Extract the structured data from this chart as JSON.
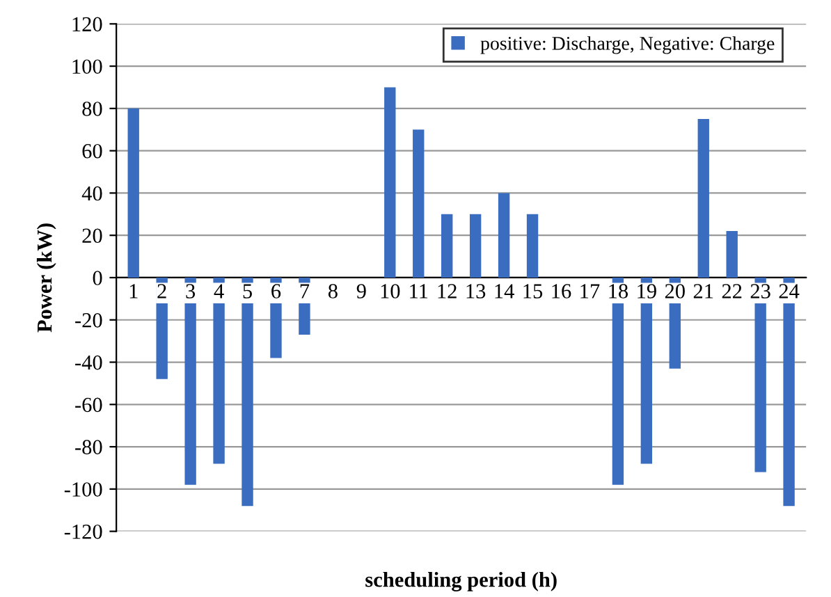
{
  "chart_data": {
    "type": "bar",
    "xlabel": "scheduling period (h)",
    "ylabel": "Power (kW)",
    "categories": [
      "1",
      "2",
      "3",
      "4",
      "5",
      "6",
      "7",
      "8",
      "9",
      "10",
      "11",
      "12",
      "13",
      "14",
      "15",
      "16",
      "17",
      "18",
      "19",
      "20",
      "21",
      "22",
      "23",
      "24"
    ],
    "series": [
      {
        "name": "positive: Discharge, Negative: Charge",
        "color": "#3a6cc0",
        "values": [
          80,
          -48,
          -98,
          -88,
          -108,
          -38,
          -27,
          0,
          0,
          90,
          70,
          30,
          30,
          40,
          30,
          0,
          0,
          -98,
          -88,
          -43,
          75,
          22,
          -92,
          -108
        ]
      }
    ],
    "ylim": [
      -120,
      120
    ],
    "yticks": [
      -120,
      -100,
      -80,
      -60,
      -40,
      -20,
      0,
      20,
      40,
      60,
      80,
      100,
      120
    ],
    "grid": "y",
    "legend": "top right"
  }
}
